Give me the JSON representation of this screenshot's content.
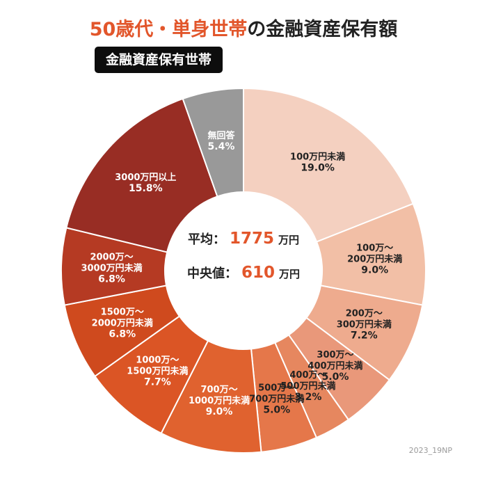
{
  "title": {
    "accent": "50歳代・単身世帯",
    "rest": "の金融資産保有額"
  },
  "subtitle": "金融資産保有世帯",
  "center": {
    "mean_label": "平均：",
    "mean_value": "1775",
    "mean_unit": "万円",
    "median_label": "中央値：",
    "median_value": "610",
    "median_unit": "万円"
  },
  "credit": "2023_19NP",
  "chart_data": {
    "type": "pie",
    "donut": true,
    "title": "",
    "slices": [
      {
        "label": "100万円未満",
        "value": 19.0,
        "value_label": "19.0%",
        "color": "#f4d0c0",
        "text_color": "#222222"
      },
      {
        "label": "100万〜\n200万円未満",
        "value": 9.0,
        "value_label": "9.0%",
        "color": "#f2bfa6",
        "text_color": "#222222"
      },
      {
        "label": "200万〜\n300万円未満",
        "value": 7.2,
        "value_label": "7.2%",
        "color": "#eeab8e",
        "text_color": "#222222"
      },
      {
        "label": "300万〜\n400万円未満",
        "value": 5.0,
        "value_label": "5.0%",
        "color": "#e9987a",
        "text_color": "#222222"
      },
      {
        "label": "400万〜\n500万円未満",
        "value": 3.2,
        "value_label": "3.2%",
        "color": "#e6875f",
        "text_color": "#222222"
      },
      {
        "label": "500万〜\n700万円未満",
        "value": 5.0,
        "value_label": "5.0%",
        "color": "#e5774a",
        "text_color": "#222222"
      },
      {
        "label": "700万〜\n1000万円未満",
        "value": 9.0,
        "value_label": "9.0%",
        "color": "#e0622f",
        "text_color": "#ffffff"
      },
      {
        "label": "1000万〜\n1500万円未満",
        "value": 7.7,
        "value_label": "7.7%",
        "color": "#db5525",
        "text_color": "#ffffff"
      },
      {
        "label": "1500万〜\n2000万円未満",
        "value": 6.8,
        "value_label": "6.8%",
        "color": "#cf4a1e",
        "text_color": "#ffffff"
      },
      {
        "label": "2000万〜\n3000万円未満",
        "value": 6.8,
        "value_label": "6.8%",
        "color": "#b53a23",
        "text_color": "#ffffff"
      },
      {
        "label": "3000万円以上",
        "value": 15.8,
        "value_label": "15.8%",
        "color": "#982d24",
        "text_color": "#ffffff"
      },
      {
        "label": "無回答",
        "value": 5.4,
        "value_label": "5.4%",
        "color": "#999999",
        "text_color": "#ffffff"
      }
    ]
  }
}
